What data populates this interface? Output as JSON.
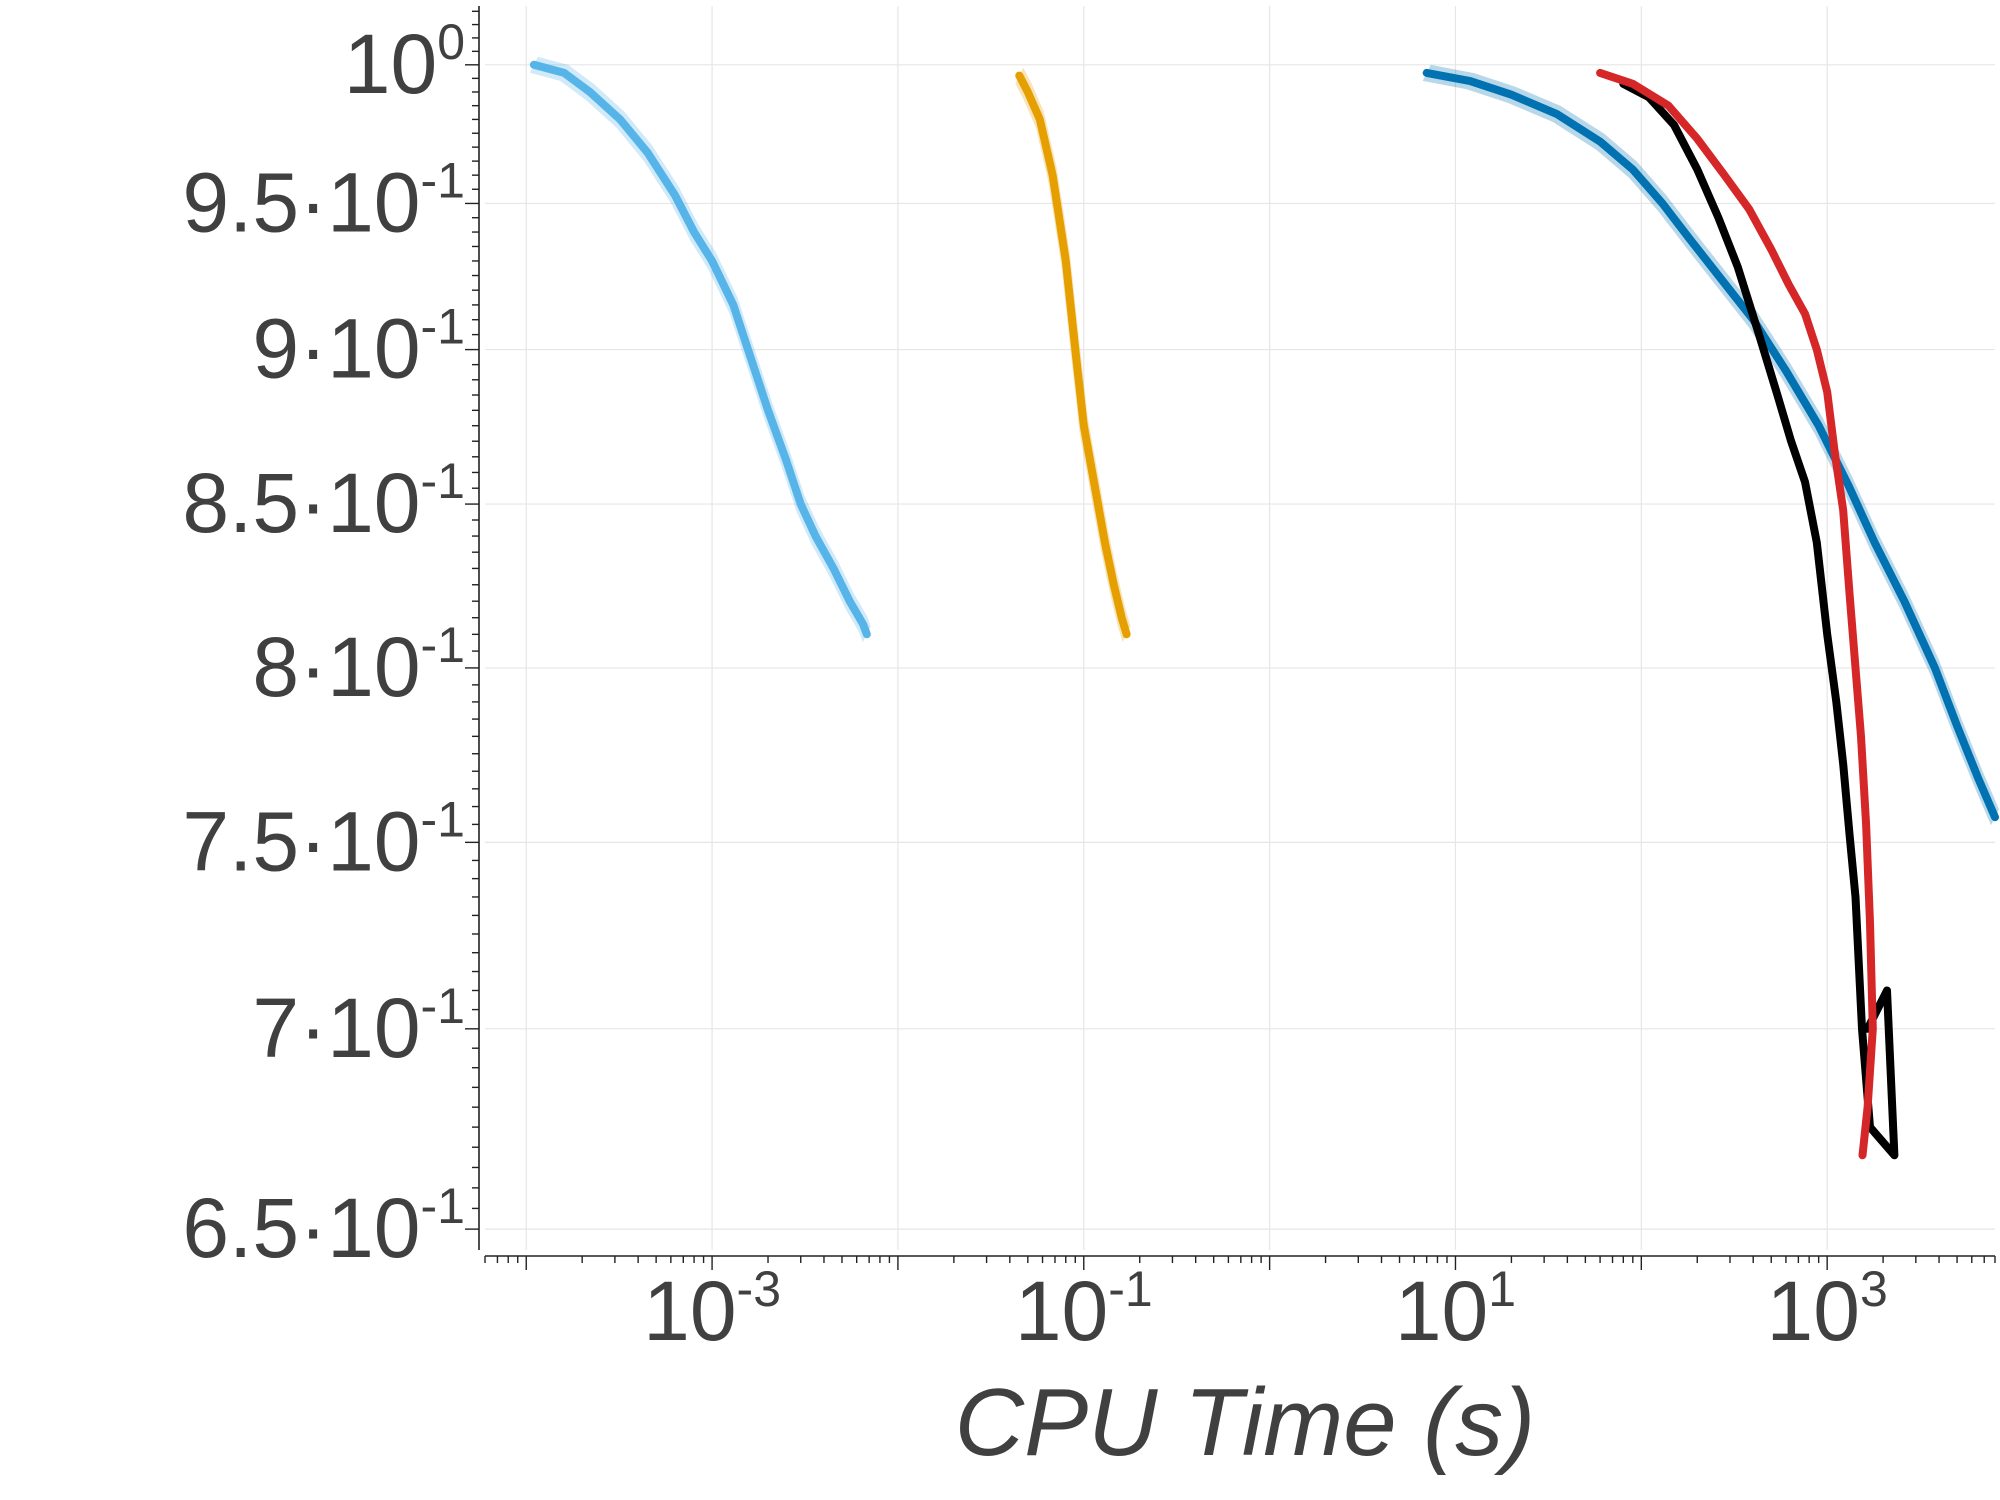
{
  "chart_data": {
    "type": "line",
    "title": "",
    "xlabel": "CPU Time (s)",
    "ylabel": "",
    "x_scale": "log",
    "y_scale": "log",
    "xlim": [
      6e-05,
      8000
    ],
    "ylim": [
      0.645,
      1.022
    ],
    "grid": true,
    "legend": "none",
    "x_ticks": [
      {
        "value": 0.001,
        "base": "10",
        "exp": "-3"
      },
      {
        "value": 0.1,
        "base": "10",
        "exp": "-1"
      },
      {
        "value": 10,
        "base": "10",
        "exp": "1"
      },
      {
        "value": 1000,
        "base": "10",
        "exp": "3"
      }
    ],
    "y_ticks": [
      {
        "value": 1.0,
        "base": "10",
        "exp": "0"
      },
      {
        "value": 0.95,
        "base": "9.5·10",
        "exp": "-1"
      },
      {
        "value": 0.9,
        "base": "9·10",
        "exp": "-1"
      },
      {
        "value": 0.85,
        "base": "8.5·10",
        "exp": "-1"
      },
      {
        "value": 0.8,
        "base": "8·10",
        "exp": "-1"
      },
      {
        "value": 0.75,
        "base": "7.5·10",
        "exp": "-1"
      },
      {
        "value": 0.7,
        "base": "7·10",
        "exp": "-1"
      },
      {
        "value": 0.65,
        "base": "6.5·10",
        "exp": "-1"
      }
    ],
    "series": [
      {
        "color": "#56b4e9",
        "band": true,
        "points": [
          [
            0.00011,
            1.0
          ],
          [
            0.00016,
            0.997
          ],
          [
            0.00022,
            0.99
          ],
          [
            0.00032,
            0.98
          ],
          [
            0.00045,
            0.968
          ],
          [
            0.00063,
            0.953
          ],
          [
            0.0008,
            0.94
          ],
          [
            0.001,
            0.93
          ],
          [
            0.0013,
            0.915
          ],
          [
            0.0016,
            0.898
          ],
          [
            0.002,
            0.88
          ],
          [
            0.0025,
            0.864
          ],
          [
            0.003,
            0.85
          ],
          [
            0.0036,
            0.84
          ],
          [
            0.0045,
            0.83
          ],
          [
            0.0055,
            0.82
          ],
          [
            0.0065,
            0.813
          ],
          [
            0.0068,
            0.81
          ]
        ]
      },
      {
        "color": "#e69f00",
        "band": true,
        "points": [
          [
            0.045,
            0.996
          ],
          [
            0.05,
            0.99
          ],
          [
            0.058,
            0.98
          ],
          [
            0.068,
            0.96
          ],
          [
            0.08,
            0.93
          ],
          [
            0.09,
            0.9
          ],
          [
            0.1,
            0.875
          ],
          [
            0.115,
            0.855
          ],
          [
            0.13,
            0.838
          ],
          [
            0.145,
            0.825
          ],
          [
            0.16,
            0.815
          ],
          [
            0.17,
            0.81
          ]
        ]
      },
      {
        "color": "#0072b2",
        "band": true,
        "points": [
          [
            7,
            0.997
          ],
          [
            12,
            0.994
          ],
          [
            20,
            0.989
          ],
          [
            35,
            0.982
          ],
          [
            60,
            0.972
          ],
          [
            90,
            0.962
          ],
          [
            130,
            0.95
          ],
          [
            180,
            0.938
          ],
          [
            260,
            0.925
          ],
          [
            400,
            0.91
          ],
          [
            600,
            0.893
          ],
          [
            900,
            0.875
          ],
          [
            1300,
            0.856
          ],
          [
            1800,
            0.838
          ],
          [
            2600,
            0.82
          ],
          [
            3800,
            0.8
          ],
          [
            5000,
            0.783
          ],
          [
            6500,
            0.768
          ],
          [
            8000,
            0.757
          ]
        ]
      },
      {
        "color": "#000000",
        "band": false,
        "points": [
          [
            80,
            0.993
          ],
          [
            110,
            0.988
          ],
          [
            150,
            0.978
          ],
          [
            200,
            0.962
          ],
          [
            260,
            0.945
          ],
          [
            330,
            0.928
          ],
          [
            430,
            0.905
          ],
          [
            540,
            0.885
          ],
          [
            640,
            0.87
          ],
          [
            760,
            0.857
          ],
          [
            880,
            0.838
          ],
          [
            1000,
            0.81
          ],
          [
            1120,
            0.79
          ],
          [
            1220,
            0.772
          ],
          [
            1320,
            0.752
          ],
          [
            1420,
            0.735
          ],
          [
            1540,
            0.7
          ],
          [
            1700,
            0.675
          ],
          [
            2300,
            0.668
          ],
          [
            2100,
            0.71
          ],
          [
            1650,
            0.7
          ]
        ]
      },
      {
        "color": "#d62728",
        "band": false,
        "points": [
          [
            60,
            0.997
          ],
          [
            90,
            0.993
          ],
          [
            140,
            0.985
          ],
          [
            200,
            0.973
          ],
          [
            280,
            0.96
          ],
          [
            380,
            0.948
          ],
          [
            500,
            0.934
          ],
          [
            620,
            0.922
          ],
          [
            760,
            0.912
          ],
          [
            880,
            0.9
          ],
          [
            1000,
            0.886
          ],
          [
            1100,
            0.866
          ],
          [
            1220,
            0.848
          ],
          [
            1320,
            0.822
          ],
          [
            1420,
            0.8
          ],
          [
            1520,
            0.78
          ],
          [
            1620,
            0.755
          ],
          [
            1700,
            0.728
          ],
          [
            1760,
            0.7
          ],
          [
            1650,
            0.68
          ],
          [
            1550,
            0.668
          ]
        ]
      }
    ]
  }
}
